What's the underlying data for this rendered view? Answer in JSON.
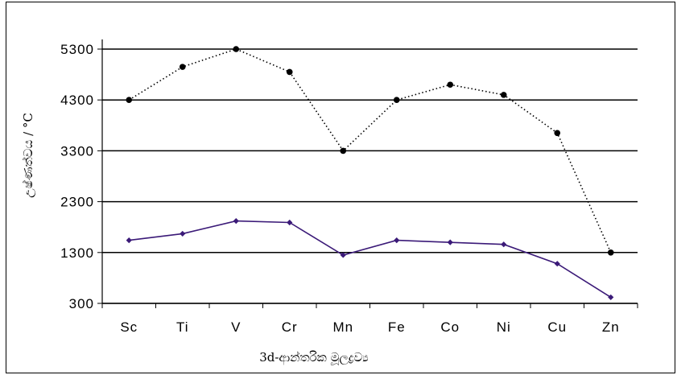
{
  "chart_data": {
    "type": "line",
    "xlabel": "3d-ආන්තරික මූලද්‍රව්‍ය",
    "ylabel": "උෂ්ණත්වය / °C",
    "categories": [
      "Sc",
      "Ti",
      "V",
      "Cr",
      "Mn",
      "Fe",
      "Co",
      "Ni",
      "Cu",
      "Zn"
    ],
    "y_ticks": [
      "300",
      "1300",
      "2300",
      "3300",
      "4300",
      "5300"
    ],
    "ylim": [
      300,
      5300
    ],
    "grid": "horizontal",
    "legend": "none",
    "series": [
      {
        "style": "dotted",
        "color": "#000000",
        "marker": "circle",
        "values": [
          4300,
          4950,
          5300,
          4850,
          3300,
          4300,
          4600,
          4400,
          3650,
          1300
        ]
      },
      {
        "style": "solid",
        "color": "#3b1a78",
        "marker": "diamond",
        "values": [
          1540,
          1670,
          1920,
          1890,
          1250,
          1540,
          1500,
          1460,
          1080,
          420
        ]
      }
    ]
  }
}
